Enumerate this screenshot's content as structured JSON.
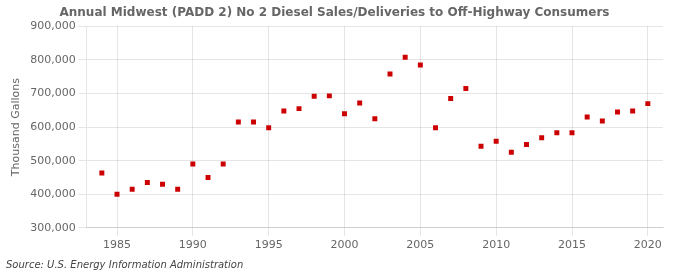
{
  "chart_data": {
    "type": "scatter",
    "title": "Annual Midwest (PADD 2) No 2 Diesel Sales/Deliveries to Off-Highway Consumers",
    "ylabel": "Thousand Gallons",
    "annotations": [
      "Source: U.S. Energy Information Administration"
    ],
    "x": [
      1984,
      1985,
      1986,
      1987,
      1988,
      1989,
      1990,
      1991,
      1992,
      1993,
      1994,
      1995,
      1996,
      1997,
      1998,
      1999,
      2000,
      2001,
      2002,
      2003,
      2004,
      2005,
      2006,
      2007,
      2008,
      2009,
      2010,
      2011,
      2012,
      2013,
      2014,
      2015,
      2016,
      2017,
      2018,
      2019,
      2020
    ],
    "values": [
      463000,
      400000,
      415000,
      435000,
      430000,
      415000,
      490000,
      450000,
      490000,
      615000,
      615000,
      598000,
      648000,
      655000,
      692000,
      693000,
      640000,
      672000,
      625000,
      758000,
      808000,
      785000,
      598000,
      685000,
      715000,
      543000,
      558000,
      525000,
      548000,
      568000,
      583000,
      583000,
      630000,
      618000,
      645000,
      648000,
      670000
    ],
    "color": "#cc0000",
    "marker": "square",
    "xlim": [
      1983,
      2021
    ],
    "xticks": [
      1985,
      1990,
      1995,
      2000,
      2005,
      2010,
      2015,
      2020
    ],
    "ylim": [
      300000,
      900000
    ],
    "yticks": [
      {
        "value": 300000,
        "label": "300,000"
      },
      {
        "value": 400000,
        "label": "400,000"
      },
      {
        "value": 500000,
        "label": "500,000"
      },
      {
        "value": 600000,
        "label": "600,000"
      },
      {
        "value": 700000,
        "label": "700,000"
      },
      {
        "value": 800000,
        "label": "800,000"
      },
      {
        "value": 900000,
        "label": "900,000"
      }
    ],
    "grid": true
  }
}
